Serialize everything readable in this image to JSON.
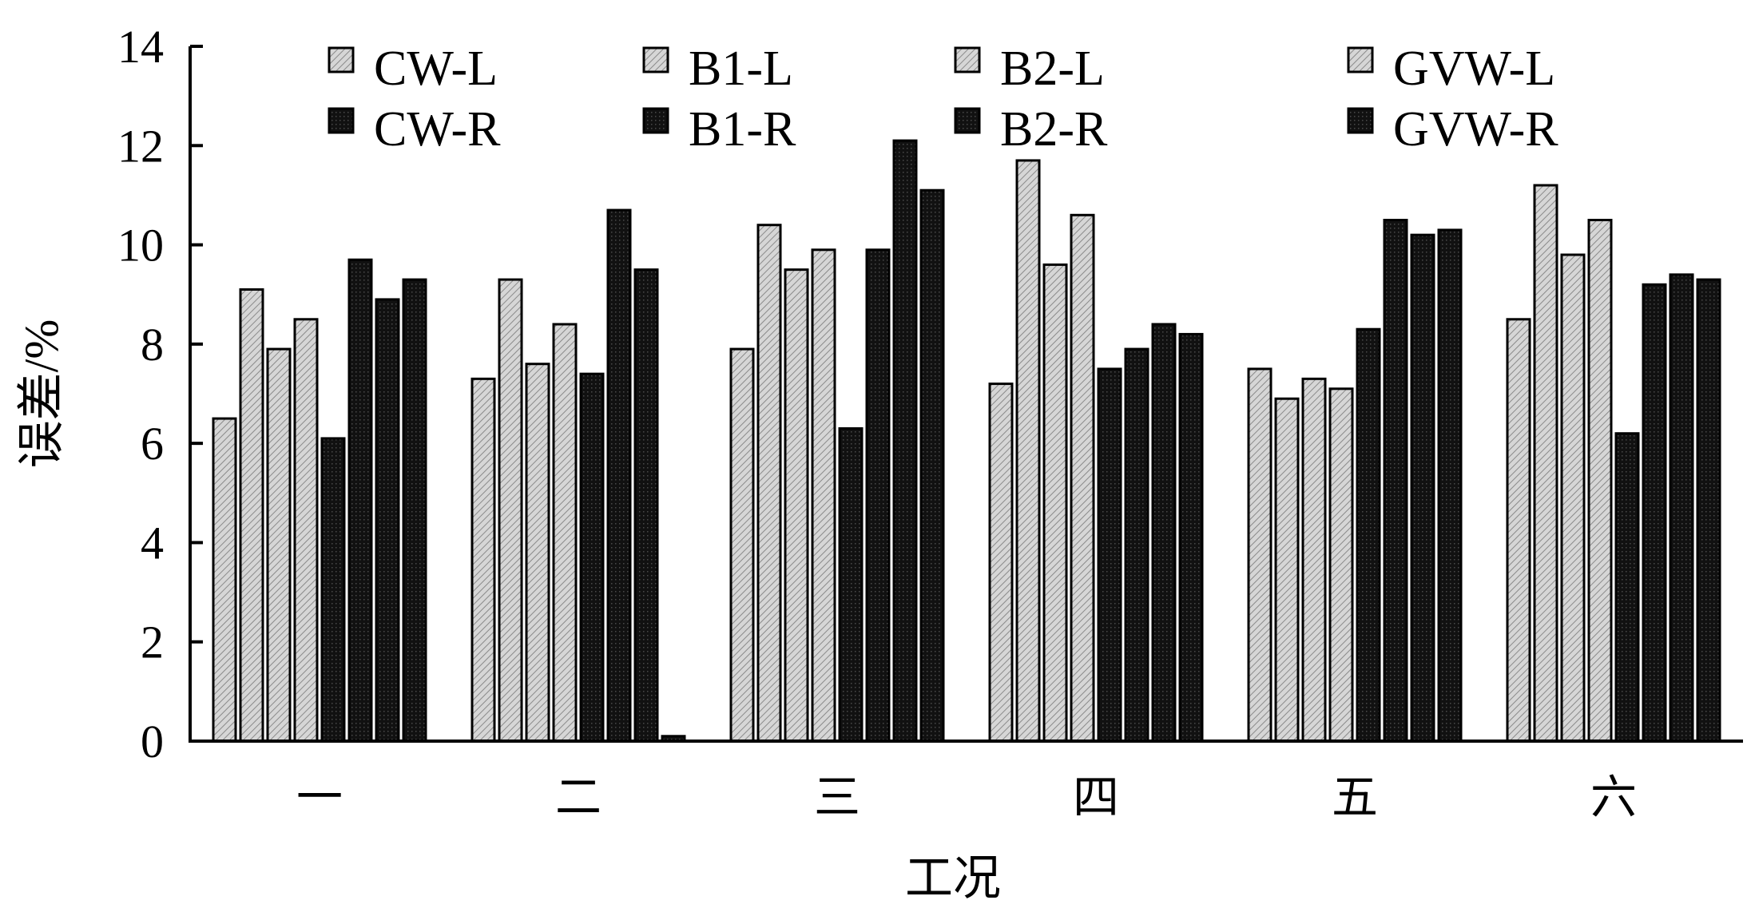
{
  "chart_data": {
    "type": "bar",
    "title": "",
    "xlabel": "工况",
    "ylabel": "误差/%",
    "ylim": [
      0,
      14
    ],
    "yticks": [
      "0",
      "2",
      "4",
      "6",
      "8",
      "10",
      "12",
      "14"
    ],
    "categories": [
      "一",
      "二",
      "三",
      "四",
      "五",
      "六"
    ],
    "legend_position": "top",
    "grid": false,
    "series": [
      {
        "name": "CW-L",
        "shade": "light",
        "color": "#c8c8c8",
        "values": [
          6.5,
          7.3,
          7.9,
          7.2,
          7.5,
          8.5
        ]
      },
      {
        "name": "B1-L",
        "shade": "light",
        "color": "#d2d2d2",
        "values": [
          9.1,
          9.3,
          10.4,
          11.7,
          6.9,
          11.2
        ]
      },
      {
        "name": "B2-L",
        "shade": "light",
        "color": "#a8a8a8",
        "values": [
          7.9,
          7.6,
          9.5,
          9.6,
          7.3,
          9.8
        ]
      },
      {
        "name": "GVW-L",
        "shade": "light",
        "color": "#b8b8b8",
        "values": [
          8.5,
          8.4,
          9.9,
          10.6,
          7.1,
          10.5
        ]
      },
      {
        "name": "CW-R",
        "shade": "dark",
        "color": "#1a1a1a",
        "values": [
          6.1,
          7.4,
          6.3,
          7.5,
          8.3,
          6.2
        ]
      },
      {
        "name": "B1-R",
        "shade": "dark",
        "color": "#1a1a1a",
        "values": [
          9.7,
          10.7,
          9.9,
          7.9,
          10.5,
          9.2
        ]
      },
      {
        "name": "B2-R",
        "shade": "dark",
        "color": "#1a1a1a",
        "values": [
          8.9,
          9.5,
          12.1,
          8.4,
          10.2,
          9.4
        ]
      },
      {
        "name": "GVW-R",
        "shade": "dark",
        "color": "#1a1a1a",
        "values": [
          9.3,
          0.1,
          11.1,
          8.2,
          10.3,
          9.3
        ]
      }
    ]
  }
}
